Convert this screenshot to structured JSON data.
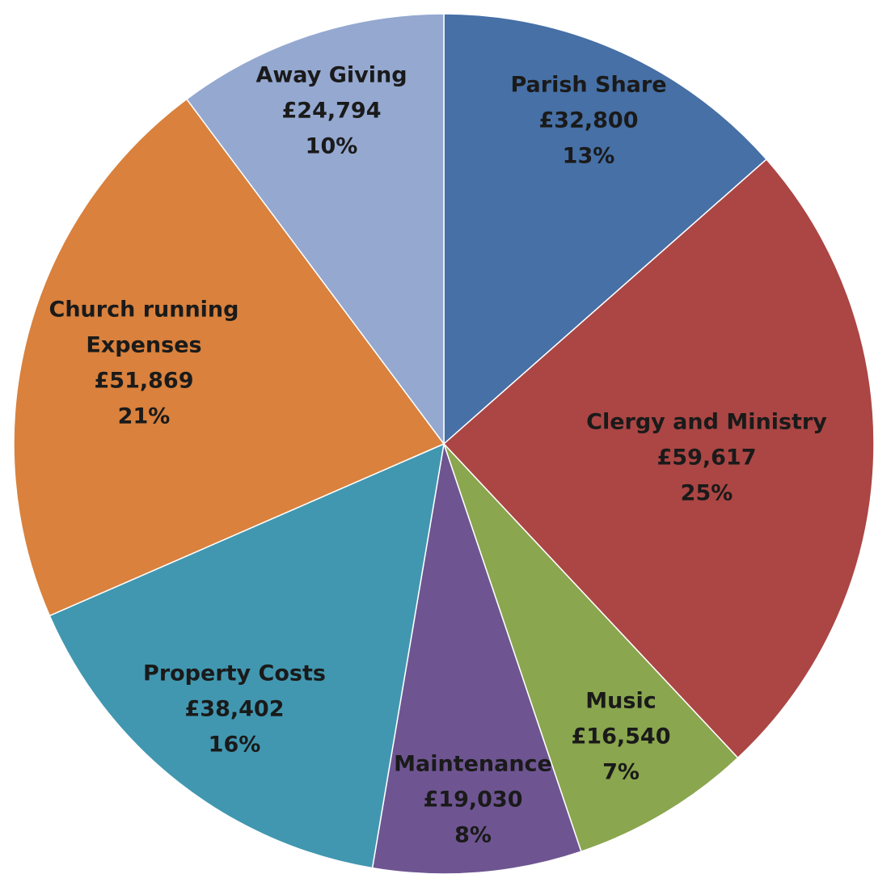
{
  "chart_data": {
    "type": "pie",
    "slices": [
      {
        "name": "Parish Share",
        "value": 32800,
        "value_label": "£32,800",
        "percent_label": "13%",
        "color": "#4670a6"
      },
      {
        "name": "Clergy and Ministry",
        "value": 59617,
        "value_label": "£59,617",
        "percent_label": "25%",
        "color": "#ab4644"
      },
      {
        "name": "Music",
        "value": 16540,
        "value_label": "£16,540",
        "percent_label": "7%",
        "color": "#8aa64e"
      },
      {
        "name": "Maintenance",
        "value": 19030,
        "value_label": "£19,030",
        "percent_label": "8%",
        "color": "#6e5591"
      },
      {
        "name": "Property Costs",
        "value": 38402,
        "value_label": "£38,402",
        "percent_label": "16%",
        "color": "#4197b0"
      },
      {
        "name": "Church running\nExpenses",
        "value": 51869,
        "value_label": "£51,869",
        "percent_label": "21%",
        "color": "#d9813d"
      },
      {
        "name": "Away Giving",
        "value": 24794,
        "value_label": "£24,794",
        "percent_label": "10%",
        "color": "#94a8d0"
      }
    ],
    "start": "12 o'clock",
    "direction": "clockwise",
    "legend": "none",
    "title": ""
  }
}
